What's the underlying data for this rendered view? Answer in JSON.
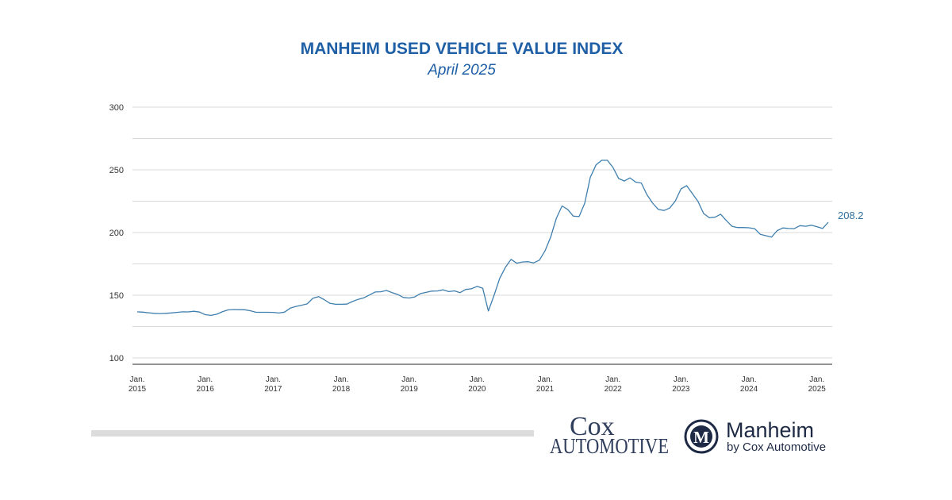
{
  "chart_data": {
    "type": "line",
    "title": "MANHEIM USED VEHICLE VALUE INDEX",
    "subtitle": "April 2025",
    "xlabel": "",
    "ylabel": "",
    "ylim": [
      100,
      300
    ],
    "yticks": [
      "100",
      "150",
      "200",
      "250",
      "300"
    ],
    "grid": true,
    "xtick_labels": [
      {
        "month": "Jan.",
        "year": "2015",
        "index": 0
      },
      {
        "month": "Jan.",
        "year": "2016",
        "index": 12
      },
      {
        "month": "Jan.",
        "year": "2017",
        "index": 24
      },
      {
        "month": "Jan.",
        "year": "2018",
        "index": 36
      },
      {
        "month": "Jan.",
        "year": "2019",
        "index": 48
      },
      {
        "month": "Jan.",
        "year": "2020",
        "index": 60
      },
      {
        "month": "Jan.",
        "year": "2021",
        "index": 72
      },
      {
        "month": "Jan.",
        "year": "2022",
        "index": 84
      },
      {
        "month": "Jan.",
        "year": "2023",
        "index": 96
      },
      {
        "month": "Jan.",
        "year": "2024",
        "index": 108
      },
      {
        "month": "Jan.",
        "year": "2025",
        "index": 120
      }
    ],
    "series": [
      {
        "name": "Manheim Used Vehicle Value Index",
        "color": "#3f7fae",
        "start": "Jan. 2015",
        "values": [
          136.8,
          136.5,
          136.0,
          135.6,
          135.4,
          135.6,
          135.9,
          136.3,
          136.8,
          136.7,
          137.2,
          136.6,
          134.5,
          133.9,
          134.8,
          136.8,
          138.3,
          138.6,
          138.5,
          138.4,
          137.6,
          136.4,
          136.4,
          136.4,
          136.3,
          135.8,
          136.5,
          139.7,
          141.1,
          142.0,
          143.1,
          147.5,
          148.9,
          146.5,
          143.6,
          142.8,
          142.8,
          142.9,
          145.0,
          146.7,
          147.9,
          150.2,
          152.6,
          152.8,
          153.8,
          152.1,
          150.6,
          148.2,
          147.8,
          148.7,
          151.3,
          152.3,
          153.3,
          153.4,
          154.3,
          152.9,
          153.5,
          152.1,
          154.6,
          155.1,
          157.1,
          155.6,
          137.4,
          150.0,
          163.5,
          172.3,
          178.6,
          175.6,
          176.5,
          176.8,
          175.8,
          178.0,
          185.4,
          196.5,
          211.4,
          221.2,
          218.4,
          213.1,
          212.7,
          223.2,
          244.1,
          253.9,
          257.6,
          257.6,
          251.9,
          243.1,
          241.1,
          243.6,
          240.2,
          239.5,
          230.1,
          223.4,
          218.4,
          217.6,
          219.5,
          225.1,
          234.8,
          237.4,
          231.1,
          224.9,
          215.2,
          211.8,
          212.2,
          214.6,
          209.6,
          205.0,
          204.0,
          204.0,
          203.8,
          203.1,
          198.6,
          197.5,
          196.4,
          201.6,
          203.7,
          203.2,
          203.1,
          205.5,
          205.0,
          205.8,
          204.7,
          203.2,
          208.2
        ]
      }
    ],
    "end_label": "208.2"
  },
  "branding": {
    "cox_line1": "Cox",
    "cox_line2": "Automotive",
    "manheim_name": "Manheim",
    "manheim_sub": "by Cox Automotive",
    "manheim_mark": "M"
  },
  "colors": {
    "title": "#1f5fa6",
    "line": "#3f7fae",
    "grid": "#d9d9d9",
    "baseline": "#555555",
    "bar": "#dcdcdc",
    "cox": "#2f3e5c",
    "manheim": "#1e2a45"
  }
}
